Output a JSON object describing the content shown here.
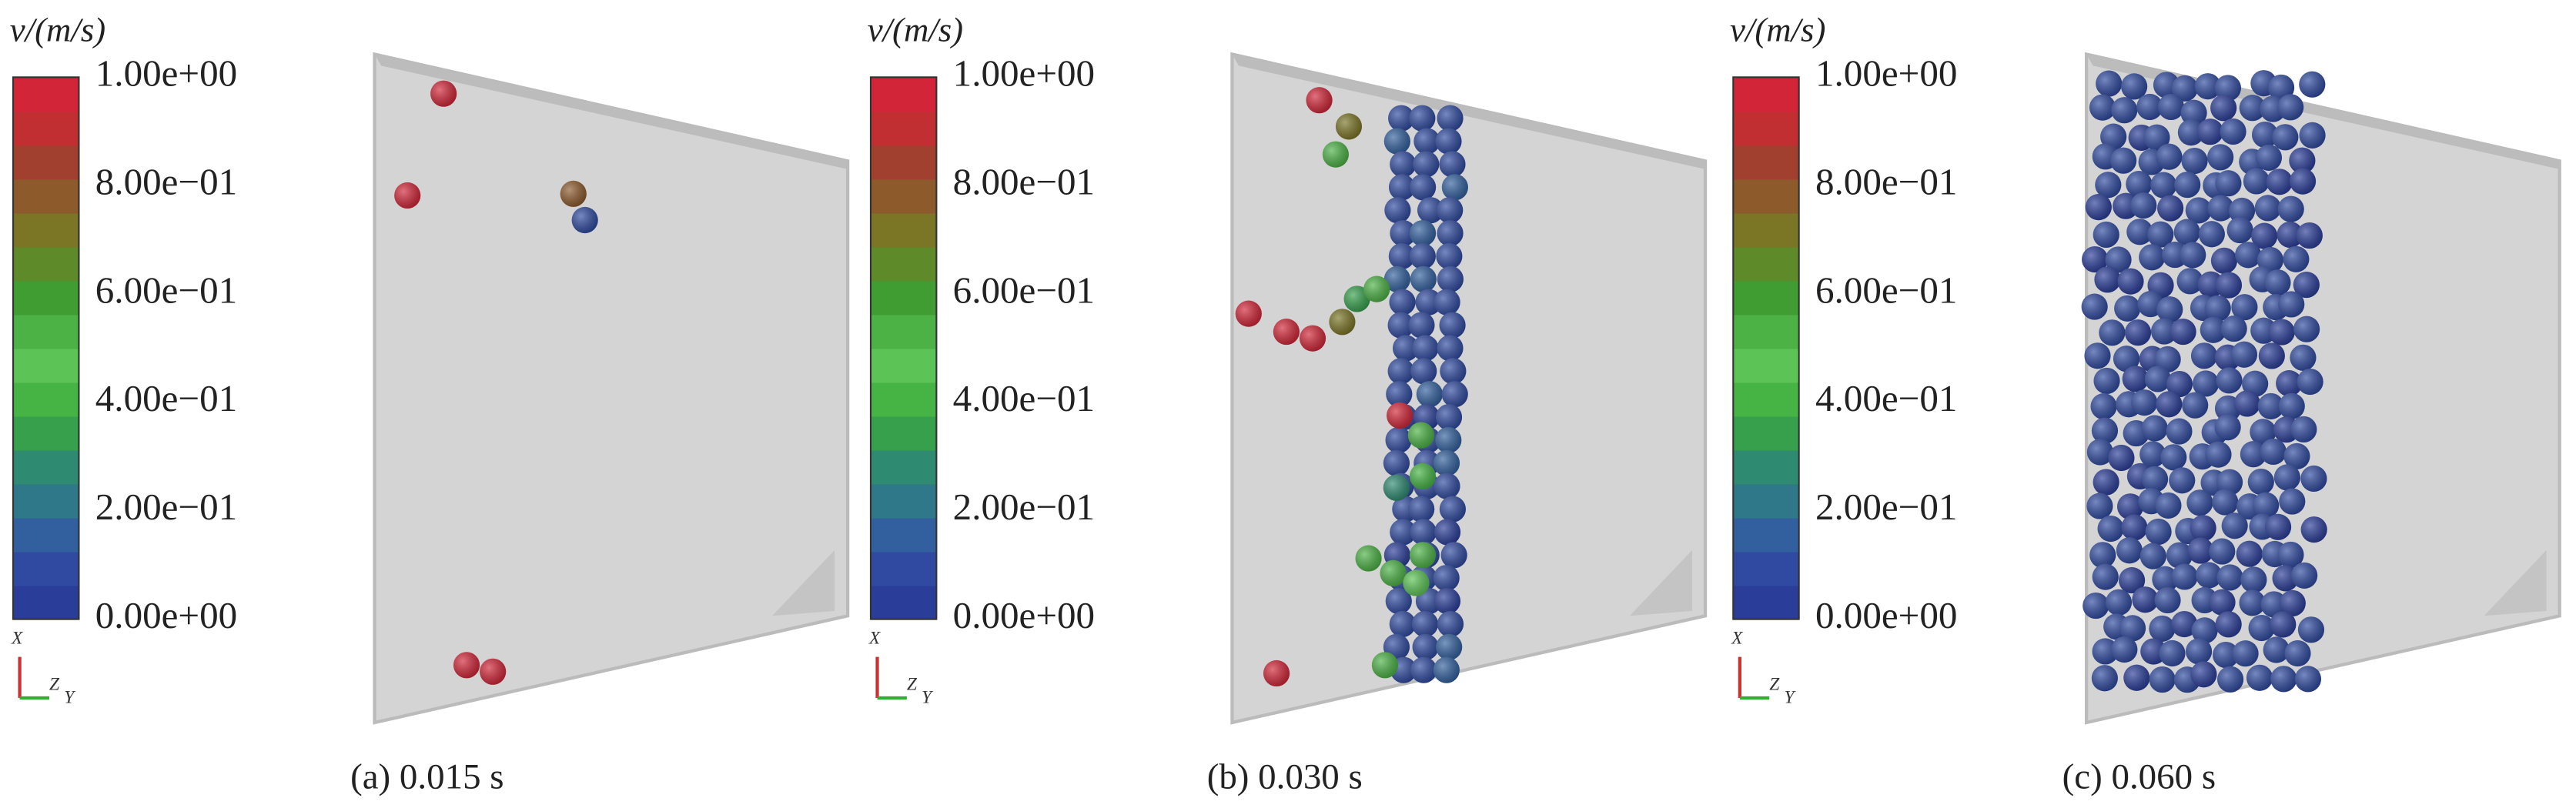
{
  "panels": [
    {
      "colorbar": {
        "title": "v/(m/s)",
        "labels": [
          "1.00e+00",
          "8.00e−01",
          "6.00e−01",
          "4.00e−01",
          "2.00e−01",
          "0.00e+00"
        ]
      },
      "axes": {
        "x": "X",
        "z": "Z",
        "y": "Y"
      },
      "caption": "(a) 0.015 s"
    },
    {
      "colorbar": {
        "title": "v/(m/s)",
        "labels": [
          "1.00e+00",
          "8.00e−01",
          "6.00e−01",
          "4.00e−01",
          "2.00e−01",
          "0.00e+00"
        ]
      },
      "axes": {
        "x": "X",
        "z": "Z",
        "y": "Y"
      },
      "caption": "(b) 0.030 s"
    },
    {
      "colorbar": {
        "title": "v/(m/s)",
        "labels": [
          "1.00e+00",
          "8.00e−01",
          "6.00e−01",
          "4.00e−01",
          "2.00e−01",
          "0.00e+00"
        ]
      },
      "axes": {
        "x": "X",
        "z": "Z",
        "y": "Y"
      },
      "caption": "(c) 0.060 s"
    }
  ]
}
